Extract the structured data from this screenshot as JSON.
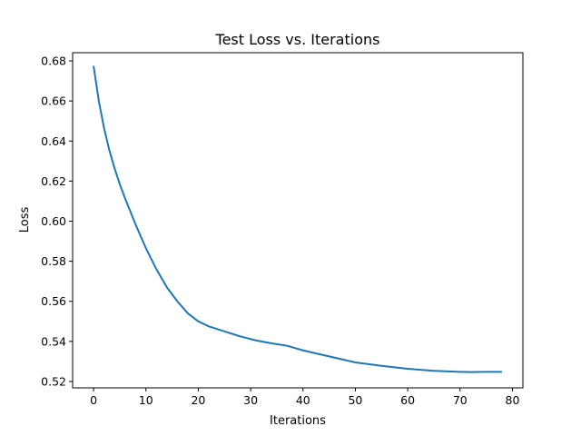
{
  "chart_data": {
    "type": "line",
    "title": "Test Loss vs. Iterations",
    "xlabel": "Iterations",
    "ylabel": "Loss",
    "xlim": [
      -4,
      82
    ],
    "ylim": [
      0.5168,
      0.6841
    ],
    "xticks": [
      0,
      10,
      20,
      30,
      40,
      50,
      60,
      70,
      80
    ],
    "yticks": [
      0.52,
      0.54,
      0.56,
      0.58,
      0.6,
      0.62,
      0.64,
      0.66,
      0.68
    ],
    "grid": false,
    "legend": "none",
    "series": [
      {
        "color": "#1f77b4",
        "x": [
          0,
          1,
          2,
          3,
          4,
          5,
          6,
          8,
          10,
          12,
          14,
          16,
          18,
          20,
          22,
          25,
          28,
          31,
          34,
          37,
          40,
          45,
          50,
          55,
          60,
          65,
          70,
          72,
          75,
          78
        ],
        "y": [
          0.6775,
          0.66,
          0.6465,
          0.6355,
          0.6265,
          0.6185,
          0.6115,
          0.5985,
          0.5865,
          0.576,
          0.567,
          0.56,
          0.554,
          0.55,
          0.5475,
          0.545,
          0.5425,
          0.5405,
          0.539,
          0.5378,
          0.5355,
          0.5325,
          0.5295,
          0.5278,
          0.5263,
          0.5253,
          0.5248,
          0.5247,
          0.5248,
          0.5248
        ]
      }
    ]
  }
}
